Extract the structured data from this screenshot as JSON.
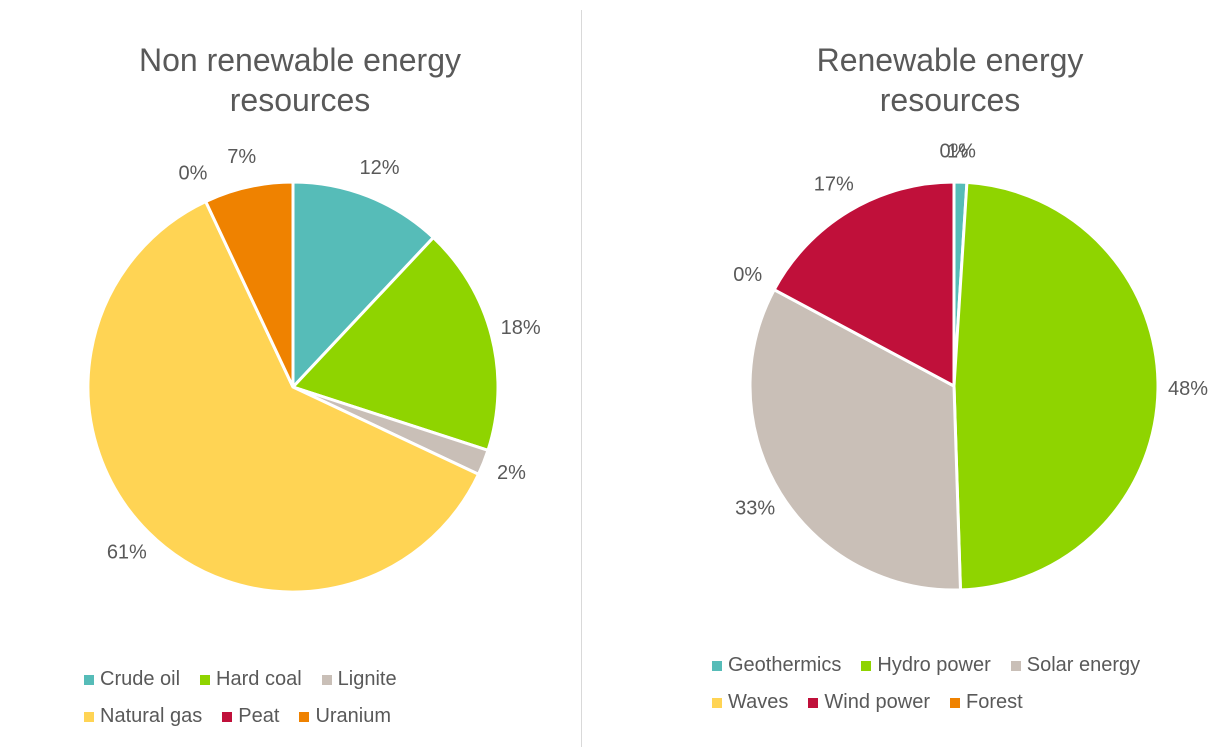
{
  "chart_data": [
    {
      "type": "pie",
      "title": "Non renewable energy resources",
      "categories": [
        "Crude oil",
        "Hard coal",
        "Lignite",
        "Natural gas",
        "Peat",
        "Uranium"
      ],
      "values": [
        12,
        18,
        2,
        61,
        0,
        7
      ],
      "value_labels": [
        "12%",
        "18%",
        "2%",
        "61%",
        "0%",
        "7%"
      ],
      "colors": [
        "#56bcb8",
        "#8fd400",
        "#c9bfb7",
        "#ffd454",
        "#c0103a",
        "#ef8200"
      ],
      "legend": "bottom"
    },
    {
      "type": "pie",
      "title": "Renewable energy resources",
      "categories": [
        "Geothermics",
        "Hydro power",
        "Solar energy",
        "Waves",
        "Wind power",
        "Forest"
      ],
      "values": [
        1,
        48,
        33,
        0,
        17,
        0
      ],
      "value_labels": [
        "1%",
        "48%",
        "33%",
        "0%",
        "17%",
        "0%"
      ],
      "colors": [
        "#56bcb8",
        "#8fd400",
        "#c9bfb7",
        "#ffd454",
        "#c0103a",
        "#ef8200"
      ],
      "legend": "bottom"
    }
  ]
}
